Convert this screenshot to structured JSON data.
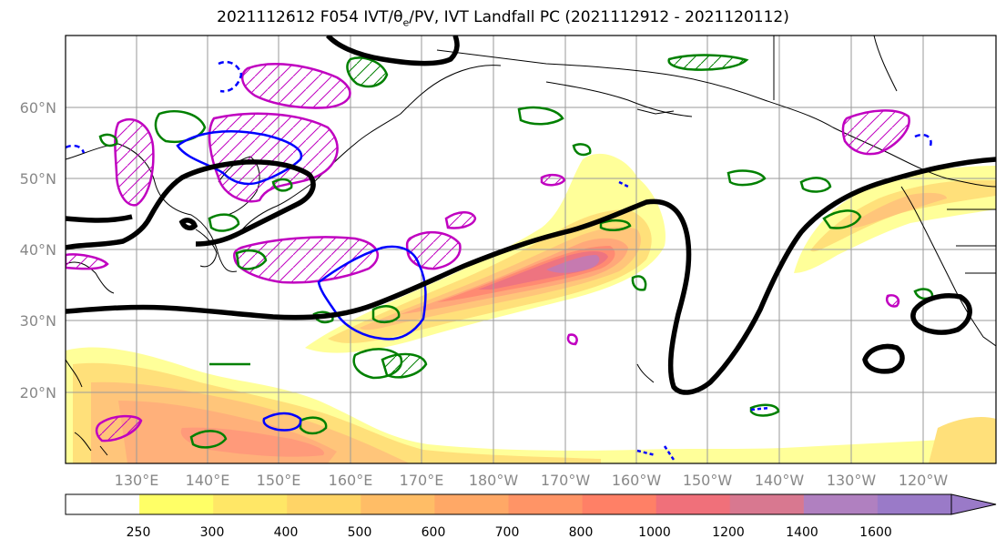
{
  "title": "2021112612 F054 IVT/θ",
  "title_sub": "e",
  "title_rest": "/PV, IVT Landfall PC (2021112912 - 2021120112)",
  "map": {
    "lat_labels": [
      "60°N",
      "50°N",
      "40°N",
      "30°N",
      "20°N"
    ],
    "lon_labels": [
      "130°E",
      "140°E",
      "150°E",
      "160°E",
      "170°E",
      "180°W",
      "170°W",
      "160°W",
      "150°W",
      "140°W",
      "130°W",
      "120°W"
    ],
    "grid": true,
    "colors": {
      "pv_contour": "#000000",
      "theta_e_contour": "#0000ff",
      "positive_pc": "#008000",
      "negative_pc": "#c000c0",
      "coast": "#000000"
    }
  },
  "colorbar": {
    "levels": [
      "250",
      "300",
      "400",
      "500",
      "600",
      "700",
      "800",
      "1000",
      "1200",
      "1400",
      "1600"
    ],
    "colors": [
      "#ffffff",
      "#ffff66",
      "#ffe766",
      "#ffd466",
      "#ffbd66",
      "#ffa866",
      "#ff9466",
      "#ff8066",
      "#f0707a",
      "#d87890",
      "#b080c0",
      "#9a7ac8"
    ]
  }
}
